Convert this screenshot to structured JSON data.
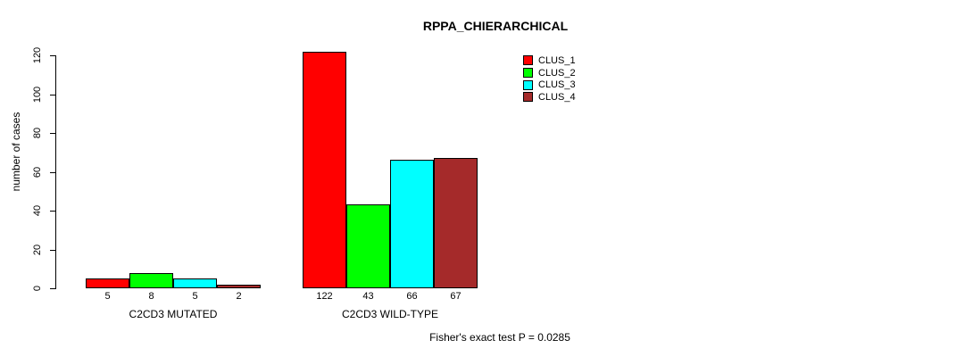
{
  "title": "RPPA_CHIERARCHICAL",
  "footer": "Fisher's exact test P = 0.0285",
  "chart_data": {
    "type": "bar",
    "title": "RPPA_CHIERARCHICAL",
    "xlabel": "",
    "ylabel": "number of cases",
    "ylim": [
      0,
      120
    ],
    "yticks": [
      0,
      20,
      40,
      60,
      80,
      100,
      120
    ],
    "grid": false,
    "legend_position": "top-right",
    "categories": [
      "C2CD3 MUTATED",
      "C2CD3 WILD-TYPE"
    ],
    "series": [
      {
        "name": "CLUS_1",
        "color": "#ff0000",
        "values": [
          5,
          122
        ]
      },
      {
        "name": "CLUS_2",
        "color": "#00ff00",
        "values": [
          8,
          43
        ]
      },
      {
        "name": "CLUS_3",
        "color": "#00ffff",
        "values": [
          5,
          66
        ]
      },
      {
        "name": "CLUS_4",
        "color": "#a52a2a",
        "values": [
          2,
          67
        ]
      }
    ],
    "bar_value_labels": [
      [
        5,
        8,
        5,
        2
      ],
      [
        122,
        43,
        66,
        67
      ]
    ],
    "annotation": "Fisher's exact test P = 0.0285"
  }
}
